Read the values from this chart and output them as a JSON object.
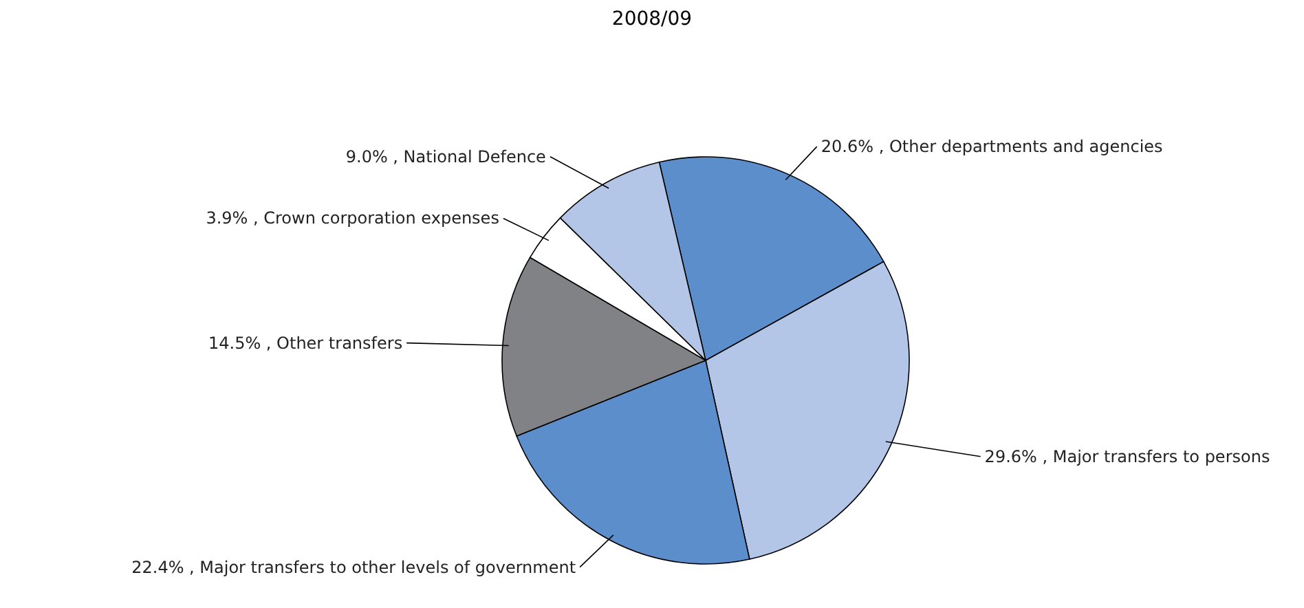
{
  "chart_data": {
    "type": "pie",
    "subtitle": "2008/09",
    "categories": [
      "Other departments and agencies",
      "Major transfers to persons",
      "Major transfers to other levels of government",
      "Other transfers",
      "Crown corporation expenses",
      "National Defence"
    ],
    "values": [
      20.6,
      29.6,
      22.4,
      14.5,
      3.9,
      9.0
    ],
    "value_labels": [
      "20.6%",
      "29.6%",
      "22.4%",
      "14.5%",
      "3.9%",
      "9.0%"
    ],
    "colors": [
      "#5b8ecb",
      "#b3c6e7",
      "#5b8ecb",
      "#808285",
      "#ffffff",
      "#b3c6e7"
    ]
  }
}
